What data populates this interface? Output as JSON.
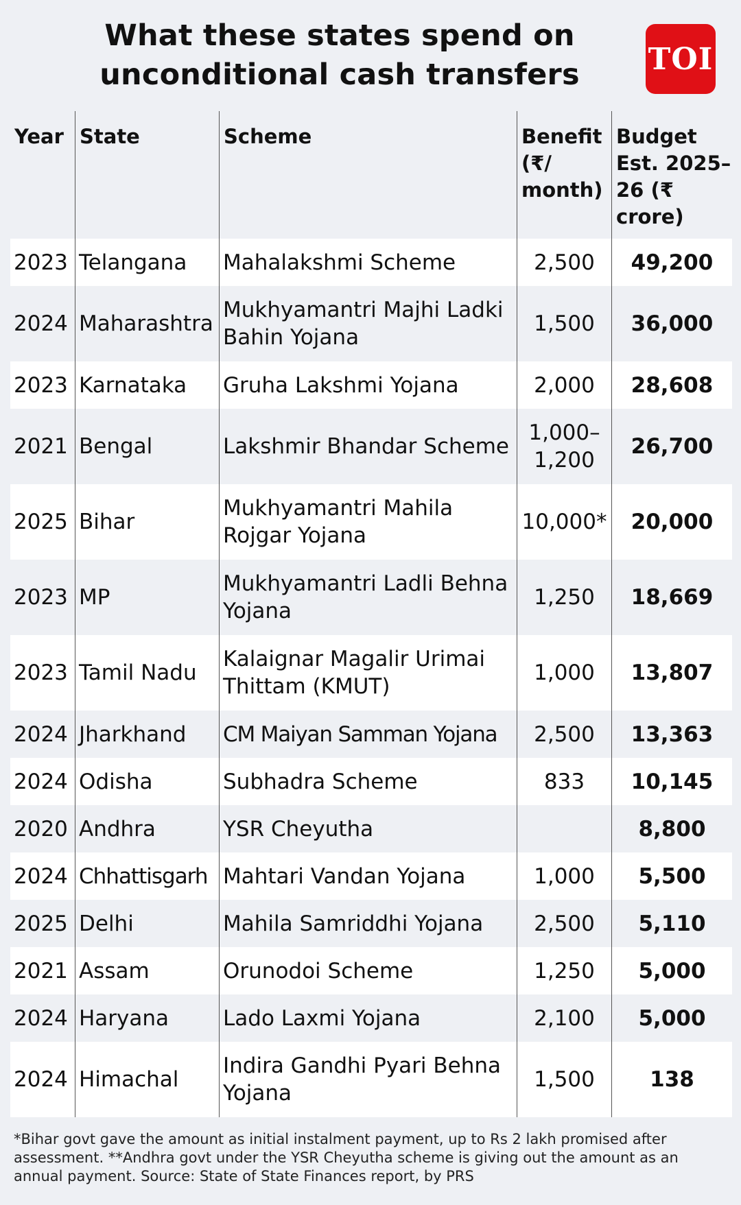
{
  "title_line1": "What these states spend on",
  "title_line2": "unconditional cash transfers",
  "logo": "TOI",
  "headers": {
    "year": "Year",
    "state": "State",
    "scheme": "Scheme",
    "benefit": "Benefit (₹/ month)",
    "budget": "Budget Est. 2025–26 (₹ crore)"
  },
  "rows": [
    {
      "year": "2023",
      "state": "Telangana",
      "scheme": "Mahalakshmi Scheme",
      "benefit": "2,500",
      "budget": "49,200"
    },
    {
      "year": "2024",
      "state": "Maharashtra",
      "scheme": "Mukhyamantri Majhi Ladki Bahin Yojana",
      "benefit": "1,500",
      "budget": "36,000"
    },
    {
      "year": "2023",
      "state": "Karnataka",
      "scheme": "Gruha Lakshmi Yojana",
      "benefit": "2,000",
      "budget": "28,608"
    },
    {
      "year": "2021",
      "state": "Bengal",
      "scheme": "Lakshmir Bhandar Scheme",
      "benefit": "1,000–1,200",
      "budget": "26,700"
    },
    {
      "year": "2025",
      "state": "Bihar",
      "scheme": "Mukhyamantri Mahila Rojgar Yojana",
      "benefit": "10,000*",
      "budget": "20,000"
    },
    {
      "year": "2023",
      "state": "MP",
      "scheme": "Mukhyamantri Ladli Behna Yojana",
      "benefit": "1,250",
      "budget": "18,669"
    },
    {
      "year": "2023",
      "state": "Tamil Nadu",
      "scheme": "Kalaignar Magalir Urimai Thittam (KMUT)",
      "benefit": "1,000",
      "budget": "13,807"
    },
    {
      "year": "2024",
      "state": "Jharkhand",
      "scheme": "CM Maiyan Samman Yojana",
      "benefit": "2,500",
      "budget": "13,363"
    },
    {
      "year": "2024",
      "state": "Odisha",
      "scheme": "Subhadra Scheme",
      "benefit": "833",
      "budget": "10,145"
    },
    {
      "year": "2020",
      "state": "Andhra",
      "scheme": "YSR Cheyutha",
      "benefit": "",
      "budget": "8,800"
    },
    {
      "year": "2024",
      "state": "Chhattisgarh",
      "scheme": "Mahtari Vandan Yojana",
      "benefit": "1,000",
      "budget": "5,500"
    },
    {
      "year": "2025",
      "state": "Delhi",
      "scheme": "Mahila Samriddhi Yojana",
      "benefit": "2,500",
      "budget": "5,110"
    },
    {
      "year": "2021",
      "state": "Assam",
      "scheme": "Orunodoi Scheme",
      "benefit": "1,250",
      "budget": "5,000"
    },
    {
      "year": "2024",
      "state": "Haryana",
      "scheme": "Lado Laxmi Yojana",
      "benefit": "2,100",
      "budget": "5,000"
    },
    {
      "year": "2024",
      "state": "Himachal",
      "scheme": "Indira Gandhi Pyari Behna Yojana",
      "benefit": "1,500",
      "budget": "138"
    }
  ],
  "footnote": "*Bihar govt gave the amount as initial instalment payment, up to Rs 2 lakh promised after assessment. **Andhra govt under the YSR Cheyutha scheme is giving out the amount as an annual payment. Source: State of State Finances report, by PRS",
  "colors": {
    "background": "#eef0f4",
    "row_alt": "#ffffff",
    "logo_red": "#e01016",
    "text": "#111111"
  }
}
